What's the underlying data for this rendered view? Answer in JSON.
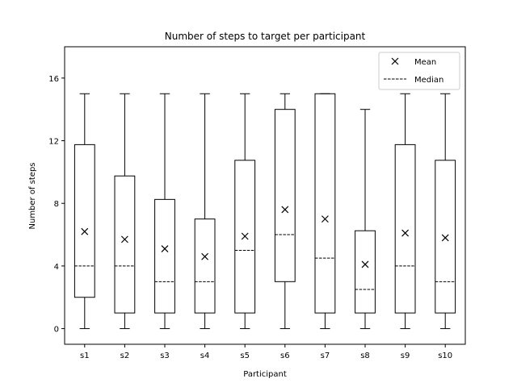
{
  "chart_data": {
    "type": "box",
    "title": "Number of steps to target per participant",
    "xlabel": "Participant",
    "ylabel": "Number of steps",
    "ylim": [
      -1,
      18
    ],
    "yticks": [
      0,
      4,
      8,
      12,
      16
    ],
    "ytick_labels": [
      "0",
      "4",
      "8",
      "12",
      "16"
    ],
    "grid": false,
    "legend": {
      "placement": "top-right",
      "entries": [
        {
          "label": "Mean",
          "marker": "x"
        },
        {
          "label": "Median",
          "marker": "dashed-line"
        }
      ]
    },
    "categories": [
      "s1",
      "s2",
      "s3",
      "s4",
      "s5",
      "s6",
      "s7",
      "s8",
      "s9",
      "s10"
    ],
    "boxes": [
      {
        "whisker_low": 0,
        "q1": 2,
        "median": 4,
        "q3": 11.75,
        "whisker_high": 15,
        "mean": 6.2
      },
      {
        "whisker_low": 0,
        "q1": 1,
        "median": 4,
        "q3": 9.75,
        "whisker_high": 15,
        "mean": 5.7
      },
      {
        "whisker_low": 0,
        "q1": 1,
        "median": 3,
        "q3": 8.25,
        "whisker_high": 15,
        "mean": 5.1
      },
      {
        "whisker_low": 0,
        "q1": 1,
        "median": 3,
        "q3": 7,
        "whisker_high": 15,
        "mean": 4.6
      },
      {
        "whisker_low": 0,
        "q1": 1,
        "median": 5,
        "q3": 10.75,
        "whisker_high": 15,
        "mean": 5.9
      },
      {
        "whisker_low": 0,
        "q1": 3,
        "median": 6,
        "q3": 14,
        "whisker_high": 15,
        "mean": 7.6
      },
      {
        "whisker_low": 0,
        "q1": 1,
        "median": 4.5,
        "q3": 15,
        "whisker_high": 15,
        "mean": 7.0
      },
      {
        "whisker_low": 0,
        "q1": 1,
        "median": 2.5,
        "q3": 6.25,
        "whisker_high": 14,
        "mean": 4.1
      },
      {
        "whisker_low": 0,
        "q1": 1,
        "median": 4,
        "q3": 11.75,
        "whisker_high": 15,
        "mean": 6.1
      },
      {
        "whisker_low": 0,
        "q1": 1,
        "median": 3,
        "q3": 10.75,
        "whisker_high": 15,
        "mean": 5.8
      }
    ],
    "colors": {
      "box": "#000000",
      "background": "#ffffff"
    }
  }
}
